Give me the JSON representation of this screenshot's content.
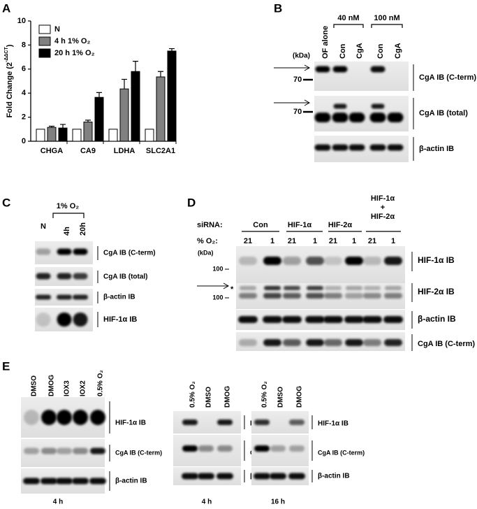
{
  "chart_data": {
    "type": "bar",
    "panel_label": "A",
    "ylabel": {
      "main": "Fold Change (2",
      "sup": "-ΔΔCT",
      "end": ")"
    },
    "ylim": [
      0,
      10
    ],
    "yticks": [
      0,
      2,
      4,
      6,
      8,
      10
    ],
    "categories": [
      "CHGA",
      "CA9",
      "LDHA",
      "SLC2A1"
    ],
    "series": [
      {
        "name": "N",
        "color": "#ffffff",
        "values": [
          1,
          1,
          1,
          1
        ]
      },
      {
        "name": "4 h 1% O₂",
        "color": "#808080",
        "values": [
          1.15,
          1.6,
          4.35,
          5.35
        ],
        "errors": [
          0.1,
          0.15,
          0.8,
          0.45
        ]
      },
      {
        "name": "20 h 1% O₂",
        "color": "#000000",
        "values": [
          1.1,
          3.65,
          5.8,
          7.5
        ],
        "errors": [
          0.3,
          0.4,
          0.85,
          0.2
        ]
      }
    ]
  },
  "panel_b": {
    "label": "B",
    "groups": [
      "40 nM",
      "100 nM"
    ],
    "lanes": [
      "OF alone",
      "Con",
      "CgA",
      "Con",
      "CgA"
    ],
    "unit": "(kDa)",
    "markers": [
      "70",
      "70"
    ],
    "blots": [
      "CgA IB (C-term)",
      "CgA IB (total)",
      "β-actin IB"
    ]
  },
  "panel_c": {
    "label": "C",
    "group": "1% O₂",
    "lanes": [
      "N",
      "4h",
      "20h"
    ],
    "blots": [
      "CgA IB (C-term)",
      "CgA IB (total)",
      "β-actin IB",
      "HIF-1α IB"
    ]
  },
  "panel_d": {
    "label": "D",
    "sirna_label": "siRNA:",
    "sirnas": [
      "Con",
      "HIF-1α",
      "HIF-2α"
    ],
    "combo": [
      "HIF-1α",
      "+",
      "HIF-2α"
    ],
    "o2_label": "% O₂:",
    "o2": [
      "21",
      "1",
      "21",
      "1",
      "21",
      "1",
      "21",
      "1"
    ],
    "unit": "(kDa)",
    "markers": [
      "100",
      "100"
    ],
    "asterisk": "*",
    "blots": [
      "HIF-1α IB",
      "HIF-2α IB",
      "β-actin IB",
      "CgA IB (C-term)"
    ]
  },
  "panel_e": {
    "label": "E",
    "groups": [
      {
        "lanes": [
          "DMSO",
          "DMOG",
          "IOX3",
          "IOX2",
          "0.5% O₂"
        ],
        "time": "4 h",
        "blots": [
          "HIF-1α IB",
          "CgA IB (C-term)",
          "β-actin IB"
        ]
      },
      {
        "lanes": [
          "0.5% O₂",
          "DMSO",
          "DMOG"
        ],
        "time": "4 h",
        "blots": [
          "HIF-1α IB",
          "CgA IB (C-term)",
          "β-actin IB"
        ]
      },
      {
        "lanes": [
          "0.5% O₂",
          "DMSO",
          "DMOG"
        ],
        "time": "16 h",
        "blots": [
          "HIF-1α IB",
          "CgA IB (C-term)",
          "β-actin IB"
        ]
      }
    ]
  }
}
